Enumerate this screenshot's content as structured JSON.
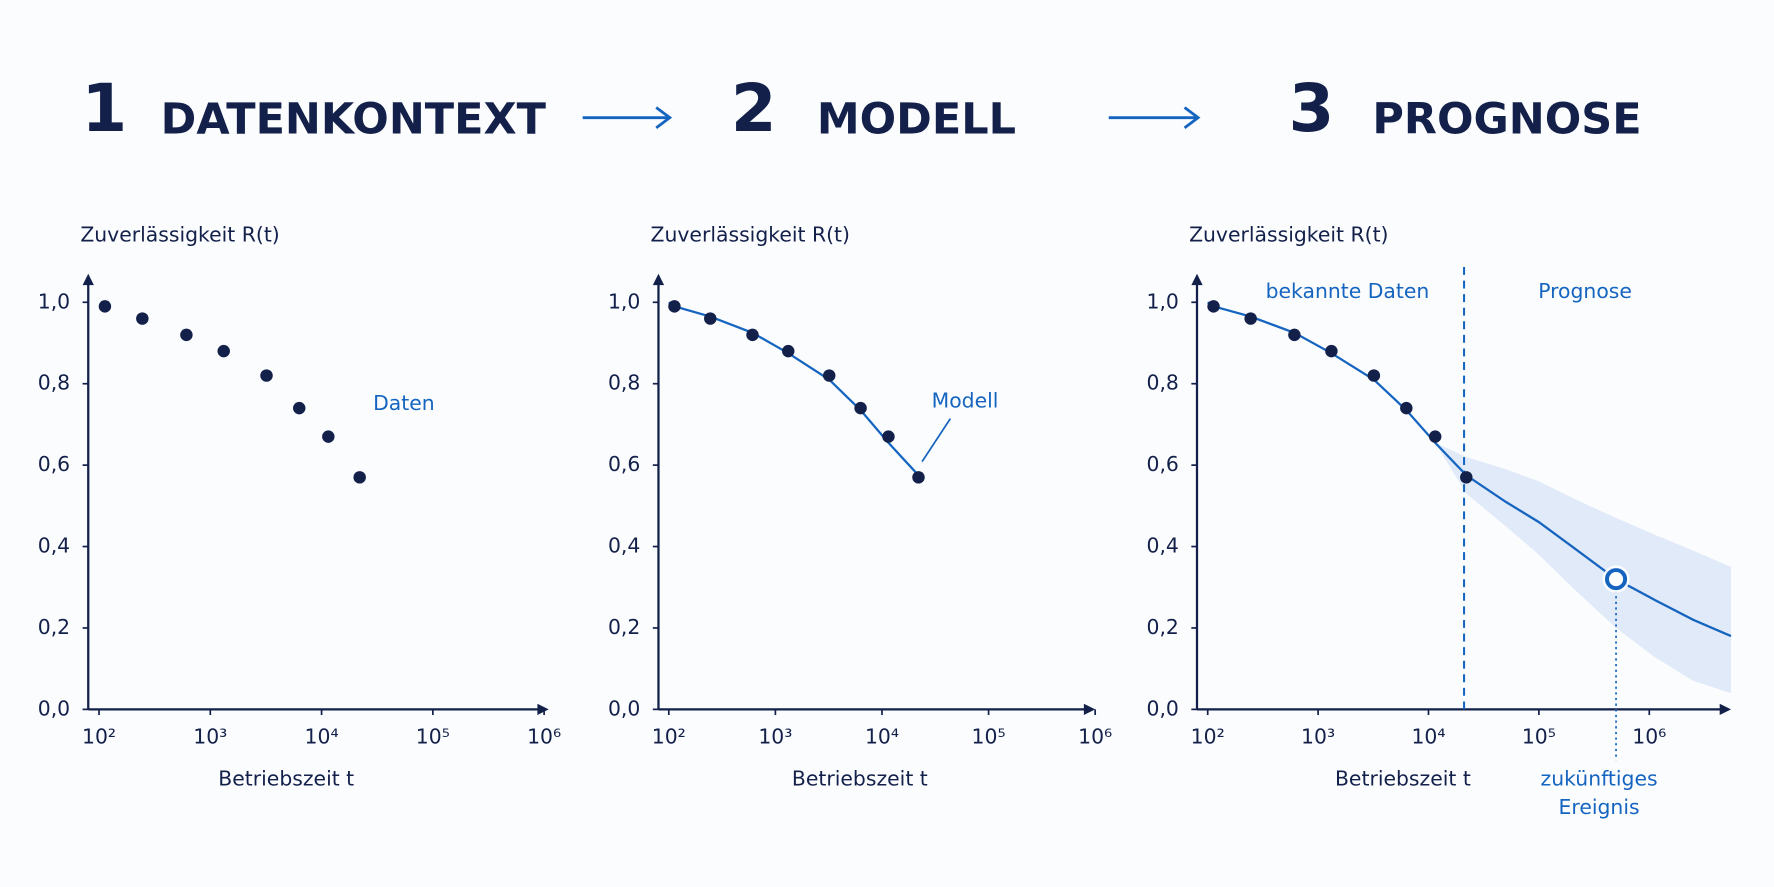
{
  "steps": [
    {
      "number": "1",
      "title": "DATENKONTEXT"
    },
    {
      "number": "2",
      "title": "MODELL"
    },
    {
      "number": "3",
      "title": "PROGNOSE"
    }
  ],
  "chart_data": [
    {
      "type": "scatter",
      "ylabel": "Zuverlässigkeit R(t)",
      "xlabel": "Betriebszeit t",
      "xscale": "log",
      "xlim": [
        80,
        1100000
      ],
      "xticks": [
        {
          "value": 100,
          "label": "10²"
        },
        {
          "value": 1000,
          "label": "10³"
        },
        {
          "value": 10000,
          "label": "10⁴"
        },
        {
          "value": 100000,
          "label": "10⁵"
        },
        {
          "value": 1000000,
          "label": "10⁶"
        }
      ],
      "ylim": [
        0,
        1.07
      ],
      "yticks": [
        {
          "value": 0,
          "label": "0,0"
        },
        {
          "value": 0.2,
          "label": "0,2"
        },
        {
          "value": 0.4,
          "label": "0,4"
        },
        {
          "value": 0.6,
          "label": "0,6"
        },
        {
          "value": 0.8,
          "label": "0,8"
        },
        {
          "value": 1,
          "label": "1,0"
        }
      ],
      "x": [
        113,
        245,
        610,
        1320,
        3200,
        6300,
        11500,
        22000
      ],
      "values": [
        0.99,
        0.96,
        0.92,
        0.88,
        0.82,
        0.74,
        0.67,
        0.57
      ],
      "color": "#13204a",
      "annotation": "Daten"
    },
    {
      "type": "scatter",
      "ylabel": "Zuverlässigkeit R(t)",
      "xlabel": "Betriebszeit t",
      "xscale": "log",
      "xlim": [
        80,
        1000000
      ],
      "xticks": [
        {
          "value": 100,
          "label": "10²"
        },
        {
          "value": 1000,
          "label": "10³"
        },
        {
          "value": 10000,
          "label": "10⁴"
        },
        {
          "value": 100000,
          "label": "10⁵"
        },
        {
          "value": 1000000,
          "label": "10⁶"
        }
      ],
      "ylim": [
        0,
        1.07
      ],
      "yticks": [
        {
          "value": 0,
          "label": "0,0"
        },
        {
          "value": 0.2,
          "label": "0,2"
        },
        {
          "value": 0.4,
          "label": "0,4"
        },
        {
          "value": 0.6,
          "label": "0,6"
        },
        {
          "value": 0.8,
          "label": "0,8"
        },
        {
          "value": 1,
          "label": "1,0"
        }
      ],
      "x": [
        113,
        245,
        610,
        1320,
        3200,
        6300,
        11500,
        22000
      ],
      "values": [
        0.99,
        0.96,
        0.92,
        0.88,
        0.82,
        0.74,
        0.67,
        0.57
      ],
      "color": "#13204a",
      "model": {
        "x": [
          100,
          113,
          245,
          610,
          1320,
          3200,
          6300,
          11500,
          22000
        ],
        "values": [
          1.0,
          0.99,
          0.965,
          0.925,
          0.875,
          0.81,
          0.735,
          0.655,
          0.575
        ],
        "color": "#1565c0"
      },
      "annotation": "Modell"
    },
    {
      "type": "scatter",
      "ylabel": "Zuverlässigkeit R(t)",
      "xlabel": "Betriebszeit t",
      "xscale": "log",
      "xlim": [
        80,
        5500000
      ],
      "xticks": [
        {
          "value": 100,
          "label": "10²"
        },
        {
          "value": 1000,
          "label": "10³"
        },
        {
          "value": 10000,
          "label": "10⁴"
        },
        {
          "value": 100000,
          "label": "10⁵"
        },
        {
          "value": 1000000,
          "label": "10⁶"
        }
      ],
      "ylim": [
        0,
        1.07
      ],
      "yticks": [
        {
          "value": 0,
          "label": "0,0"
        },
        {
          "value": 0.2,
          "label": "0,2"
        },
        {
          "value": 0.4,
          "label": "0,4"
        },
        {
          "value": 0.6,
          "label": "0,6"
        },
        {
          "value": 0.8,
          "label": "0,8"
        },
        {
          "value": 1,
          "label": "1,0"
        }
      ],
      "x": [
        113,
        245,
        610,
        1320,
        3200,
        6300,
        11500,
        22000
      ],
      "values": [
        0.99,
        0.96,
        0.92,
        0.88,
        0.82,
        0.74,
        0.67,
        0.57
      ],
      "color": "#13204a",
      "model": {
        "x": [
          100,
          113,
          245,
          610,
          1320,
          3200,
          6300,
          11500,
          22000,
          50000,
          100000,
          200000,
          500000,
          1100000,
          2500000,
          5500000
        ],
        "values": [
          1.0,
          0.99,
          0.965,
          0.925,
          0.875,
          0.81,
          0.735,
          0.655,
          0.575,
          0.51,
          0.46,
          0.4,
          0.32,
          0.27,
          0.22,
          0.18
        ],
        "color": "#1565c0"
      },
      "band": {
        "x": [
          11500,
          22000,
          50000,
          100000,
          200000,
          500000,
          1100000,
          2500000,
          5500000
        ],
        "upper": [
          0.655,
          0.62,
          0.59,
          0.56,
          0.52,
          0.47,
          0.43,
          0.39,
          0.35
        ],
        "lower": [
          0.655,
          0.53,
          0.45,
          0.38,
          0.3,
          0.2,
          0.13,
          0.07,
          0.04
        ],
        "color": "#dce6f7"
      },
      "split_x": 21000,
      "region_labels": [
        "bekannte Daten",
        "Prognose"
      ],
      "event": {
        "x": 500000,
        "value": 0.32,
        "label": [
          "zukünftiges",
          "Ereignis"
        ]
      }
    }
  ]
}
